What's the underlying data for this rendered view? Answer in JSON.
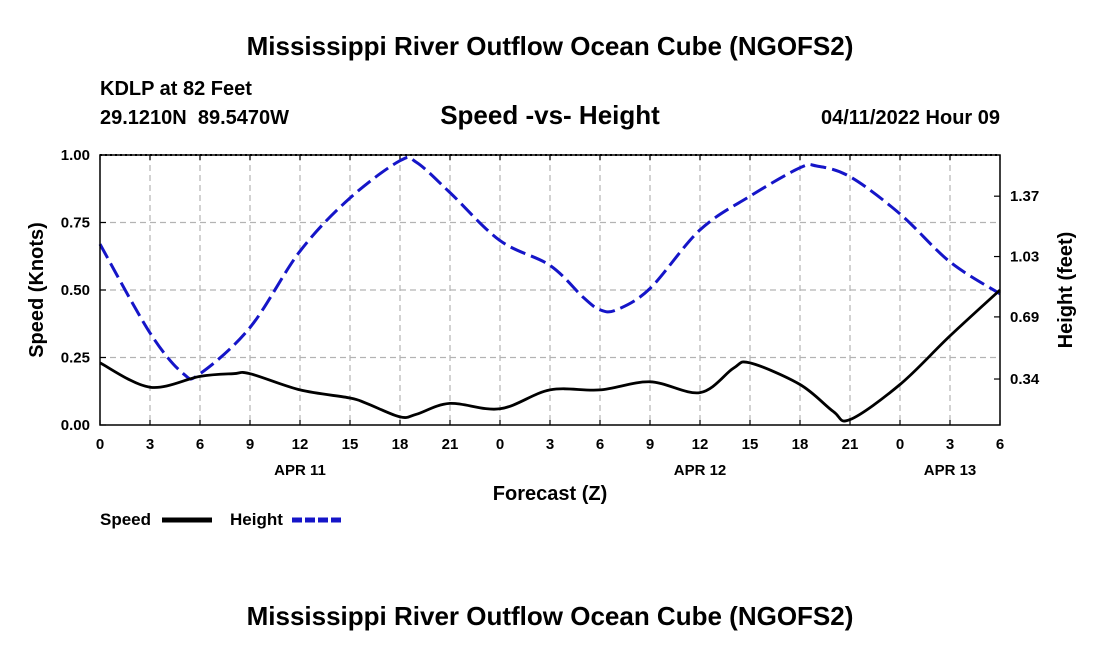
{
  "chart_data": {
    "type": "line",
    "title": "Mississippi River Outflow Ocean Cube (NGOFS2)",
    "footer_title": "Mississippi River Outflow Ocean Cube (NGOFS2)",
    "subtitle": "Speed -vs- Height",
    "station": "KDLP at 82 Feet",
    "coords": "29.1210N  89.5470W",
    "timestamp": "04/11/2022 Hour 09",
    "xlabel": "Forecast (Z)",
    "ylabel_left": "Speed (Knots)",
    "ylabel_right": "Height (feet)",
    "x_range_hours": [
      0,
      54
    ],
    "ylim_left": [
      0,
      1
    ],
    "ylim_right": [
      0.081,
      1.602
    ],
    "x_ticks": [
      {
        "h": 0,
        "label": "0"
      },
      {
        "h": 3,
        "label": "3"
      },
      {
        "h": 6,
        "label": "6"
      },
      {
        "h": 9,
        "label": "9"
      },
      {
        "h": 12,
        "label": "12"
      },
      {
        "h": 15,
        "label": "15"
      },
      {
        "h": 18,
        "label": "18"
      },
      {
        "h": 21,
        "label": "21"
      },
      {
        "h": 24,
        "label": "0"
      },
      {
        "h": 27,
        "label": "3"
      },
      {
        "h": 30,
        "label": "6"
      },
      {
        "h": 33,
        "label": "9"
      },
      {
        "h": 36,
        "label": "12"
      },
      {
        "h": 39,
        "label": "15"
      },
      {
        "h": 42,
        "label": "18"
      },
      {
        "h": 45,
        "label": "21"
      },
      {
        "h": 48,
        "label": "0"
      },
      {
        "h": 51,
        "label": "3"
      },
      {
        "h": 54,
        "label": "6"
      }
    ],
    "date_labels": [
      {
        "h": 12,
        "label": "APR 11"
      },
      {
        "h": 36,
        "label": "APR 12"
      },
      {
        "h": 51,
        "label": "APR 13"
      }
    ],
    "y_ticks_left": [
      {
        "v": 0,
        "label": "0.00"
      },
      {
        "v": 0.25,
        "label": "0.25"
      },
      {
        "v": 0.5,
        "label": "0.50"
      },
      {
        "v": 0.75,
        "label": "0.75"
      },
      {
        "v": 1,
        "label": "1.00"
      }
    ],
    "y_ticks_right": [
      {
        "v": 0.34,
        "label": "0.34"
      },
      {
        "v": 0.69,
        "label": "0.69"
      },
      {
        "v": 1.03,
        "label": "1.03"
      },
      {
        "v": 1.37,
        "label": "1.37"
      }
    ],
    "series": [
      {
        "name": "Speed",
        "axis": "left",
        "color": "#000000",
        "dash": "solid",
        "x": [
          0,
          3,
          6,
          8,
          9,
          12,
          15,
          16,
          18,
          19,
          21,
          24,
          27,
          30,
          33,
          36,
          38,
          39,
          42,
          44,
          45,
          48,
          51,
          54
        ],
        "values": [
          0.23,
          0.14,
          0.18,
          0.19,
          0.19,
          0.13,
          0.1,
          0.08,
          0.03,
          0.04,
          0.08,
          0.06,
          0.13,
          0.13,
          0.16,
          0.12,
          0.21,
          0.23,
          0.15,
          0.05,
          0.02,
          0.15,
          0.33,
          0.5
        ]
      },
      {
        "name": "Height",
        "axis": "right",
        "color": "#1515c8",
        "dash": "dashed",
        "x": [
          0,
          3,
          5,
          6,
          9,
          12,
          15,
          18,
          19,
          21,
          24,
          27,
          29,
          30,
          31,
          33,
          36,
          39,
          42,
          43,
          45,
          48,
          51,
          54
        ],
        "values": [
          1.1,
          0.6,
          0.37,
          0.37,
          0.63,
          1.06,
          1.36,
          1.57,
          1.56,
          1.39,
          1.12,
          0.98,
          0.8,
          0.73,
          0.73,
          0.85,
          1.18,
          1.37,
          1.53,
          1.54,
          1.48,
          1.27,
          1.0,
          0.82
        ]
      }
    ]
  }
}
